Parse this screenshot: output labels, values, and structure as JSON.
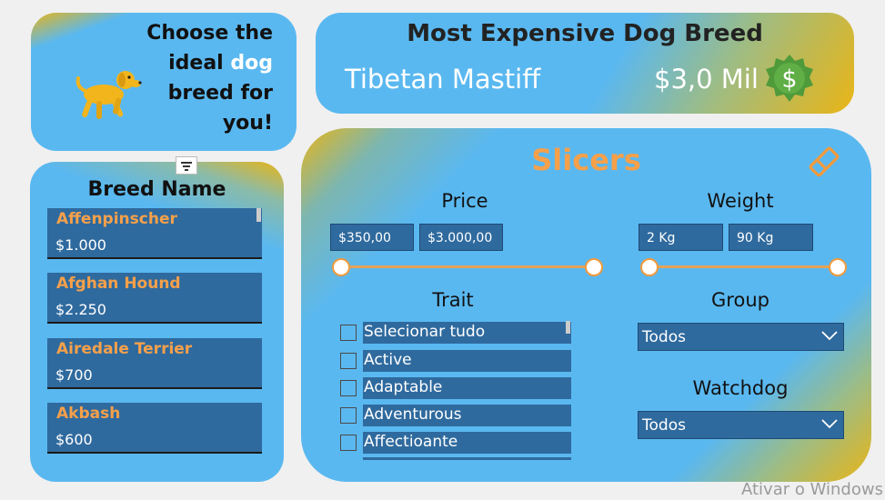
{
  "intro": {
    "line1": "Choose the",
    "line2a": "ideal ",
    "line2b": "dog",
    "line3": "breed for",
    "line4": "you!",
    "dog_icon": "dog-icon"
  },
  "expensive": {
    "title": "Most Expensive Dog Breed",
    "breed": "Tibetan Mastiff",
    "price": "$3,0 Mil",
    "badge_icon": "dollar-badge-icon"
  },
  "breeds": {
    "header": "Breed Name",
    "items": [
      {
        "name": "Affenpinscher",
        "price": "$1.000"
      },
      {
        "name": "Afghan Hound",
        "price": "$2.250"
      },
      {
        "name": "Airedale Terrier",
        "price": "$700"
      },
      {
        "name": "Akbash",
        "price": "$600"
      }
    ]
  },
  "slicers": {
    "title": "Slicers",
    "price": {
      "label": "Price",
      "min": "$350,00",
      "max": "$3.000,00"
    },
    "weight": {
      "label": "Weight",
      "min": "2 Kg",
      "max": "90 Kg"
    },
    "trait": {
      "label": "Trait",
      "options": [
        "Selecionar tudo",
        "Active",
        "Adaptable",
        "Adventurous",
        "Affectioante"
      ]
    },
    "group": {
      "label": "Group",
      "value": "Todos"
    },
    "watchdog": {
      "label": "Watchdog",
      "value": "Todos"
    }
  },
  "watermark": "Ativar o Windows",
  "colors": {
    "card_blue": "#5ab8f0",
    "gold": "#e9b516",
    "accent_orange": "#f6a04a",
    "item_blue": "#2f6a9e"
  }
}
